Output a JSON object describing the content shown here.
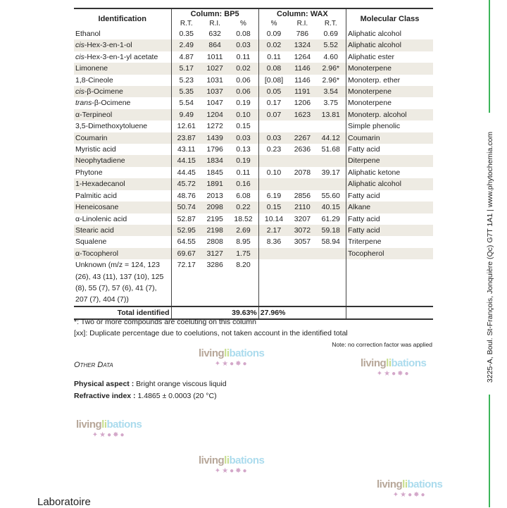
{
  "table": {
    "headers": {
      "identification": "Identification",
      "bp5": "Column: BP5",
      "wax": "Column: WAX",
      "class": "Molecular Class"
    },
    "subheaders": {
      "bp5_rt": "R.T.",
      "bp5_ri": "R.I.",
      "bp5_pct": "%",
      "wax_pct": "%",
      "wax_ri": "R.I.",
      "wax_rt": "R.T."
    },
    "rows": [
      {
        "pre": "",
        "name": "Ethanol",
        "bp5": [
          "0.35",
          "632",
          "0.08"
        ],
        "wax": [
          "0.09",
          "786",
          "0.69"
        ],
        "class": "Aliphatic alcohol"
      },
      {
        "pre": "cis",
        "name": "-Hex-3-en-1-ol",
        "bp5": [
          "2.49",
          "864",
          "0.03"
        ],
        "wax": [
          "0.02",
          "1324",
          "5.52"
        ],
        "class": "Aliphatic alcohol"
      },
      {
        "pre": "cis",
        "name": "-Hex-3-en-1-yl acetate",
        "bp5": [
          "4.87",
          "1011",
          "0.11"
        ],
        "wax": [
          "0.11",
          "1264",
          "4.60"
        ],
        "class": "Aliphatic ester"
      },
      {
        "pre": "",
        "name": "Limonene",
        "bp5": [
          "5.17",
          "1027",
          "0.02"
        ],
        "wax": [
          "0.08",
          "1146",
          "2.96*"
        ],
        "class": "Monoterpene"
      },
      {
        "pre": "",
        "name": "1,8-Cineole",
        "bp5": [
          "5.23",
          "1031",
          "0.06"
        ],
        "wax": [
          "[0.08]",
          "1146",
          "2.96*"
        ],
        "class": "Monoterp. ether"
      },
      {
        "pre": "cis",
        "name": "-β-Ocimene",
        "bp5": [
          "5.35",
          "1037",
          "0.06"
        ],
        "wax": [
          "0.05",
          "1191",
          "3.54"
        ],
        "class": "Monoterpene"
      },
      {
        "pre": "trans",
        "name": "-β-Ocimene",
        "bp5": [
          "5.54",
          "1047",
          "0.19"
        ],
        "wax": [
          "0.17",
          "1206",
          "3.75"
        ],
        "class": "Monoterpene"
      },
      {
        "pre": "",
        "name": "α-Terpineol",
        "bp5": [
          "9.49",
          "1204",
          "0.10"
        ],
        "wax": [
          "0.07",
          "1623",
          "13.81"
        ],
        "class": "Monoterp. alcohol"
      },
      {
        "pre": "",
        "name": "3,5-Dimethoxytoluene",
        "bp5": [
          "12.61",
          "1272",
          "0.15"
        ],
        "wax": [
          "",
          "",
          ""
        ],
        "class": "Simple phenolic"
      },
      {
        "pre": "",
        "name": "Coumarin",
        "bp5": [
          "23.87",
          "1439",
          "0.03"
        ],
        "wax": [
          "0.03",
          "2267",
          "44.12"
        ],
        "class": "Coumarin"
      },
      {
        "pre": "",
        "name": "Myristic acid",
        "bp5": [
          "43.11",
          "1796",
          "0.13"
        ],
        "wax": [
          "0.23",
          "2636",
          "51.68"
        ],
        "class": "Fatty acid"
      },
      {
        "pre": "",
        "name": "Neophytadiene",
        "bp5": [
          "44.15",
          "1834",
          "0.19"
        ],
        "wax": [
          "",
          "",
          ""
        ],
        "class": "Diterpene"
      },
      {
        "pre": "",
        "name": "Phytone",
        "bp5": [
          "44.45",
          "1845",
          "0.11"
        ],
        "wax": [
          "0.10",
          "2078",
          "39.17"
        ],
        "class": "Aliphatic ketone"
      },
      {
        "pre": "",
        "name": "1-Hexadecanol",
        "bp5": [
          "45.72",
          "1891",
          "0.16"
        ],
        "wax": [
          "",
          "",
          ""
        ],
        "class": "Aliphatic alcohol"
      },
      {
        "pre": "",
        "name": "Palmitic acid",
        "bp5": [
          "48.76",
          "2013",
          "6.08"
        ],
        "wax": [
          "6.19",
          "2856",
          "55.60"
        ],
        "class": "Fatty acid"
      },
      {
        "pre": "",
        "name": "Heneicosane",
        "bp5": [
          "50.74",
          "2098",
          "0.22"
        ],
        "wax": [
          "0.15",
          "2110",
          "40.15"
        ],
        "class": "Alkane"
      },
      {
        "pre": "",
        "name": "α-Linolenic acid",
        "bp5": [
          "52.87",
          "2195",
          "18.52"
        ],
        "wax": [
          "10.14",
          "3207",
          "61.29"
        ],
        "class": "Fatty acid"
      },
      {
        "pre": "",
        "name": "Stearic acid",
        "bp5": [
          "52.95",
          "2198",
          "2.69"
        ],
        "wax": [
          "2.17",
          "3072",
          "59.18"
        ],
        "class": "Fatty acid"
      },
      {
        "pre": "",
        "name": "Squalene",
        "bp5": [
          "64.55",
          "2808",
          "8.95"
        ],
        "wax": [
          "8.36",
          "3057",
          "58.94"
        ],
        "class": "Triterpene"
      },
      {
        "pre": "",
        "name": "α-Tocopherol",
        "bp5": [
          "69.67",
          "3127",
          "1.75"
        ],
        "wax": [
          "",
          "",
          ""
        ],
        "class": "Tocopherol"
      },
      {
        "pre": "",
        "name": "Unknown (m/z = 124, 123 (26), 43 (11), 137 (10), 125 (8), 55 (7), 57 (6), 41 (7), 207 (7), 404 (7))",
        "bp5": [
          "72.17",
          "3286",
          "8.20"
        ],
        "wax": [
          "",
          "",
          ""
        ],
        "class": ""
      }
    ],
    "total": {
      "label": "Total identified",
      "bp5": "39.63%",
      "wax": "27.96%"
    }
  },
  "footnotes": [
    "*: Two or more compounds are coeluting on this column",
    "[xx]: Duplicate percentage due to coelutions, not taken account in the identified total"
  ],
  "note": "Note: no correction factor was applied",
  "other_data": {
    "title": "Other Data",
    "physical_label": "Physical aspect :",
    "physical_value": "Bright orange viscous liquid",
    "refractive_label": "Refractive index :",
    "refractive_value": "1.4865 ± 0.0003 (20 °C)"
  },
  "footer": {
    "laboratoire": "Laboratoire"
  },
  "sidebar_text": "3225-A, Boul. St-François, Jonquière (Qc)  G7T 1A1  |  www.phytochemia.com",
  "watermark": {
    "part1": "living",
    "part2": "libations",
    "symbols": "✦★💧✸●"
  },
  "colors": {
    "row_shade": "#eeebe3",
    "green_line": "#3cb55a"
  }
}
